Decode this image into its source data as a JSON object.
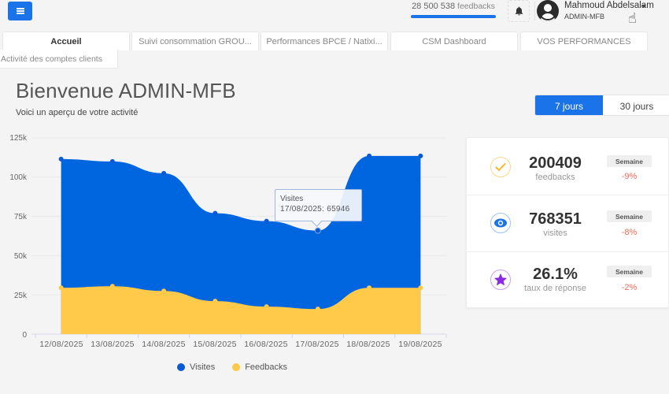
{
  "header": {
    "menu_icon": "hamburger-icon",
    "feedback_count": "28 500 538",
    "feedback_unit": "feedbacks",
    "bell_icon": "bell-icon",
    "user": {
      "name": "Mahmoud Abdelsalam",
      "role": "ADMIN-MFB",
      "avatar_icon": "user-avatar-icon",
      "caret_icon": "caret-down-icon"
    }
  },
  "tabs": [
    {
      "label": "Accueil",
      "active": true
    },
    {
      "label": "Suivi consommation GROU...",
      "active": false
    },
    {
      "label": "Performances BPCE / Natixi...",
      "active": false
    },
    {
      "label": "CSM Dashboard",
      "active": false
    },
    {
      "label": "VOS PERFORMANCES",
      "active": false
    }
  ],
  "subtab": {
    "label": "Activité des comptes clients"
  },
  "page": {
    "title": "Bienvenue ADMIN-MFB",
    "subtitle": "Voici un aperçu de votre activité"
  },
  "period": {
    "options": [
      "7 jours",
      "30 jours"
    ],
    "selected": "7 jours"
  },
  "chart": {
    "y_ticks": [
      "125k",
      "100k",
      "75k",
      "50k",
      "25k",
      "0"
    ],
    "x_ticks": [
      "12/08/2025",
      "13/08/2025",
      "14/08/2025",
      "15/08/2025",
      "16/08/2025",
      "17/08/2025",
      "18/08/2025",
      "19/08/2025"
    ],
    "tooltip": {
      "series": "Visites",
      "text": "17/08/2025: 65946"
    },
    "legend": [
      {
        "label": "Visites",
        "color": "#0066e0"
      },
      {
        "label": "Feedbacks",
        "color": "#ffc94a"
      }
    ]
  },
  "chart_data": {
    "type": "area",
    "title": "",
    "xlabel": "",
    "ylabel": "",
    "categories": [
      "12/08/2025",
      "13/08/2025",
      "14/08/2025",
      "15/08/2025",
      "16/08/2025",
      "17/08/2025",
      "18/08/2025",
      "19/08/2025"
    ],
    "series": [
      {
        "name": "Visites",
        "color": "#0066e0",
        "values": [
          111500,
          110000,
          102500,
          77000,
          72000,
          65946,
          113500,
          113500
        ]
      },
      {
        "name": "Feedbacks",
        "color": "#ffc94a",
        "values": [
          29500,
          30500,
          27500,
          21000,
          17500,
          16000,
          29500,
          29500
        ]
      }
    ],
    "ylim": [
      0,
      125000
    ],
    "y_ticks": [
      0,
      25000,
      50000,
      75000,
      100000,
      125000
    ],
    "grid": true,
    "legend_position": "bottom",
    "tooltip": {
      "series": "Visites",
      "category": "17/08/2025",
      "value": 65946
    }
  },
  "stats": [
    {
      "icon": "check-circle-icon",
      "icon_color": "#f5b82e",
      "value": "200409",
      "label": "feedbacks",
      "badge": "Semaine",
      "delta": "-9%"
    },
    {
      "icon": "eye-icon",
      "icon_color": "#1a73e8",
      "value": "768351",
      "label": "visites",
      "badge": "Semaine",
      "delta": "-8%"
    },
    {
      "icon": "star-icon",
      "icon_color": "#8a2be2",
      "value": "26.1%",
      "label": "taux de réponse",
      "badge": "Semaine",
      "delta": "-2%"
    }
  ],
  "colors": {
    "accent": "#1a73e8",
    "visites": "#0066e0",
    "feedbacks": "#ffc94a",
    "negative": "#f26d5b"
  }
}
